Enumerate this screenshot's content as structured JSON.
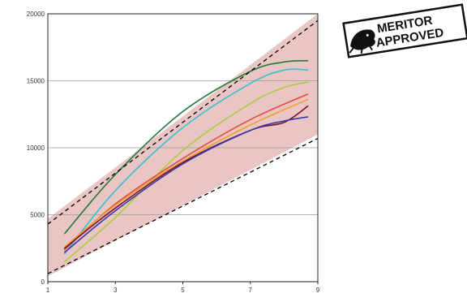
{
  "chart_data": {
    "type": "line",
    "title": "",
    "xlabel": "",
    "ylabel": "",
    "xlim": [
      1,
      9
    ],
    "ylim": [
      0,
      20000
    ],
    "x_ticks": [
      1,
      3,
      5,
      7,
      9
    ],
    "y_ticks": [
      0,
      5000,
      10000,
      15000,
      20000
    ],
    "grid": "horizontal",
    "band": {
      "color": "#e9c5c3",
      "upper": [
        {
          "x": 1,
          "y": 4700
        },
        {
          "x": 9,
          "y": 20000
        }
      ],
      "lower": [
        {
          "x": 1,
          "y": 400
        },
        {
          "x": 9,
          "y": 11000
        }
      ]
    },
    "dashed_lines": [
      {
        "color": "#000000",
        "points": [
          {
            "x": 1,
            "y": 4300
          },
          {
            "x": 9,
            "y": 19500
          }
        ]
      },
      {
        "color": "#000000",
        "points": [
          {
            "x": 1,
            "y": 600
          },
          {
            "x": 9,
            "y": 10700
          }
        ]
      }
    ],
    "series": [
      {
        "color": "#1f7a3a",
        "points": [
          {
            "x": 1.5,
            "y": 3600
          },
          {
            "x": 3,
            "y": 8000
          },
          {
            "x": 5,
            "y": 12700
          },
          {
            "x": 7,
            "y": 15700
          },
          {
            "x": 8,
            "y": 16400
          },
          {
            "x": 8.7,
            "y": 16500
          }
        ]
      },
      {
        "color": "#35c0d6",
        "points": [
          {
            "x": 1.5,
            "y": 2100
          },
          {
            "x": 3,
            "y": 6800
          },
          {
            "x": 5,
            "y": 11500
          },
          {
            "x": 7,
            "y": 14800
          },
          {
            "x": 8,
            "y": 15800
          },
          {
            "x": 8.7,
            "y": 15800
          }
        ]
      },
      {
        "color": "#a8cc3a",
        "points": [
          {
            "x": 1.5,
            "y": 1500
          },
          {
            "x": 3,
            "y": 4800
          },
          {
            "x": 5,
            "y": 9800
          },
          {
            "x": 7,
            "y": 13300
          },
          {
            "x": 8,
            "y": 14500
          },
          {
            "x": 8.7,
            "y": 14900
          }
        ]
      },
      {
        "color": "#e64b3b",
        "points": [
          {
            "x": 1.5,
            "y": 2400
          },
          {
            "x": 3,
            "y": 5800
          },
          {
            "x": 5,
            "y": 9200
          },
          {
            "x": 7,
            "y": 12100
          },
          {
            "x": 8.7,
            "y": 14000
          }
        ]
      },
      {
        "color": "#f0a030",
        "points": [
          {
            "x": 1.5,
            "y": 2600
          },
          {
            "x": 3,
            "y": 5700
          },
          {
            "x": 5,
            "y": 9000
          },
          {
            "x": 7,
            "y": 11700
          },
          {
            "x": 8.7,
            "y": 13600
          }
        ]
      },
      {
        "color": "#7a1032",
        "points": [
          {
            "x": 1.5,
            "y": 2500
          },
          {
            "x": 3,
            "y": 5500
          },
          {
            "x": 5,
            "y": 8900
          },
          {
            "x": 7,
            "y": 11300
          },
          {
            "x": 8,
            "y": 11900
          },
          {
            "x": 8.7,
            "y": 13100
          }
        ]
      },
      {
        "color": "#3a3aa8",
        "points": [
          {
            "x": 1.5,
            "y": 2200
          },
          {
            "x": 3,
            "y": 5300
          },
          {
            "x": 5,
            "y": 8800
          },
          {
            "x": 7,
            "y": 11300
          },
          {
            "x": 8,
            "y": 12000
          },
          {
            "x": 8.7,
            "y": 12300
          }
        ]
      }
    ]
  },
  "badge": {
    "line1": "MERITOR",
    "line2": "APPROVED",
    "icon": "bulldog-icon"
  }
}
